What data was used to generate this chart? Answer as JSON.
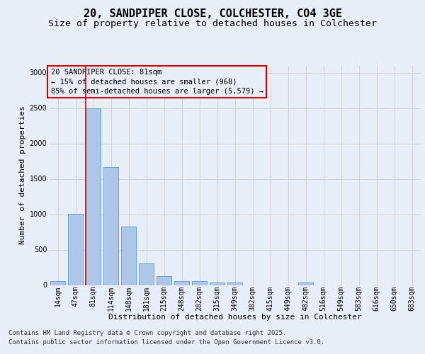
{
  "title_line1": "20, SANDPIPER CLOSE, COLCHESTER, CO4 3GE",
  "title_line2": "Size of property relative to detached houses in Colchester",
  "xlabel": "Distribution of detached houses by size in Colchester",
  "ylabel": "Number of detached properties",
  "categories": [
    "14sqm",
    "47sqm",
    "81sqm",
    "114sqm",
    "148sqm",
    "181sqm",
    "215sqm",
    "248sqm",
    "282sqm",
    "315sqm",
    "349sqm",
    "382sqm",
    "415sqm",
    "449sqm",
    "482sqm",
    "516sqm",
    "549sqm",
    "583sqm",
    "616sqm",
    "650sqm",
    "683sqm"
  ],
  "values": [
    60,
    1005,
    2500,
    1670,
    830,
    310,
    130,
    60,
    55,
    40,
    40,
    0,
    0,
    0,
    35,
    0,
    0,
    0,
    0,
    0,
    0
  ],
  "bar_color": "#aec6e8",
  "bar_edge_color": "#5b9bd5",
  "grid_color": "#d0d0d0",
  "vline_index": 2,
  "vline_color": "#cc0000",
  "annotation_text_line1": "20 SANDPIPER CLOSE: 81sqm",
  "annotation_text_line2": "← 15% of detached houses are smaller (968)",
  "annotation_text_line3": "85% of semi-detached houses are larger (5,579) →",
  "annotation_box_color": "#cc0000",
  "ylim": [
    0,
    3100
  ],
  "yticks": [
    0,
    500,
    1000,
    1500,
    2000,
    2500,
    3000
  ],
  "background_color": "#e8eef8",
  "title_fontsize": 11,
  "subtitle_fontsize": 9.5,
  "axis_label_fontsize": 8,
  "tick_fontsize": 7,
  "annotation_fontsize": 7.5,
  "footer_fontsize": 6.5,
  "footer_line1": "Contains HM Land Registry data © Crown copyright and database right 2025.",
  "footer_line2": "Contains public sector information licensed under the Open Government Licence v3.0."
}
